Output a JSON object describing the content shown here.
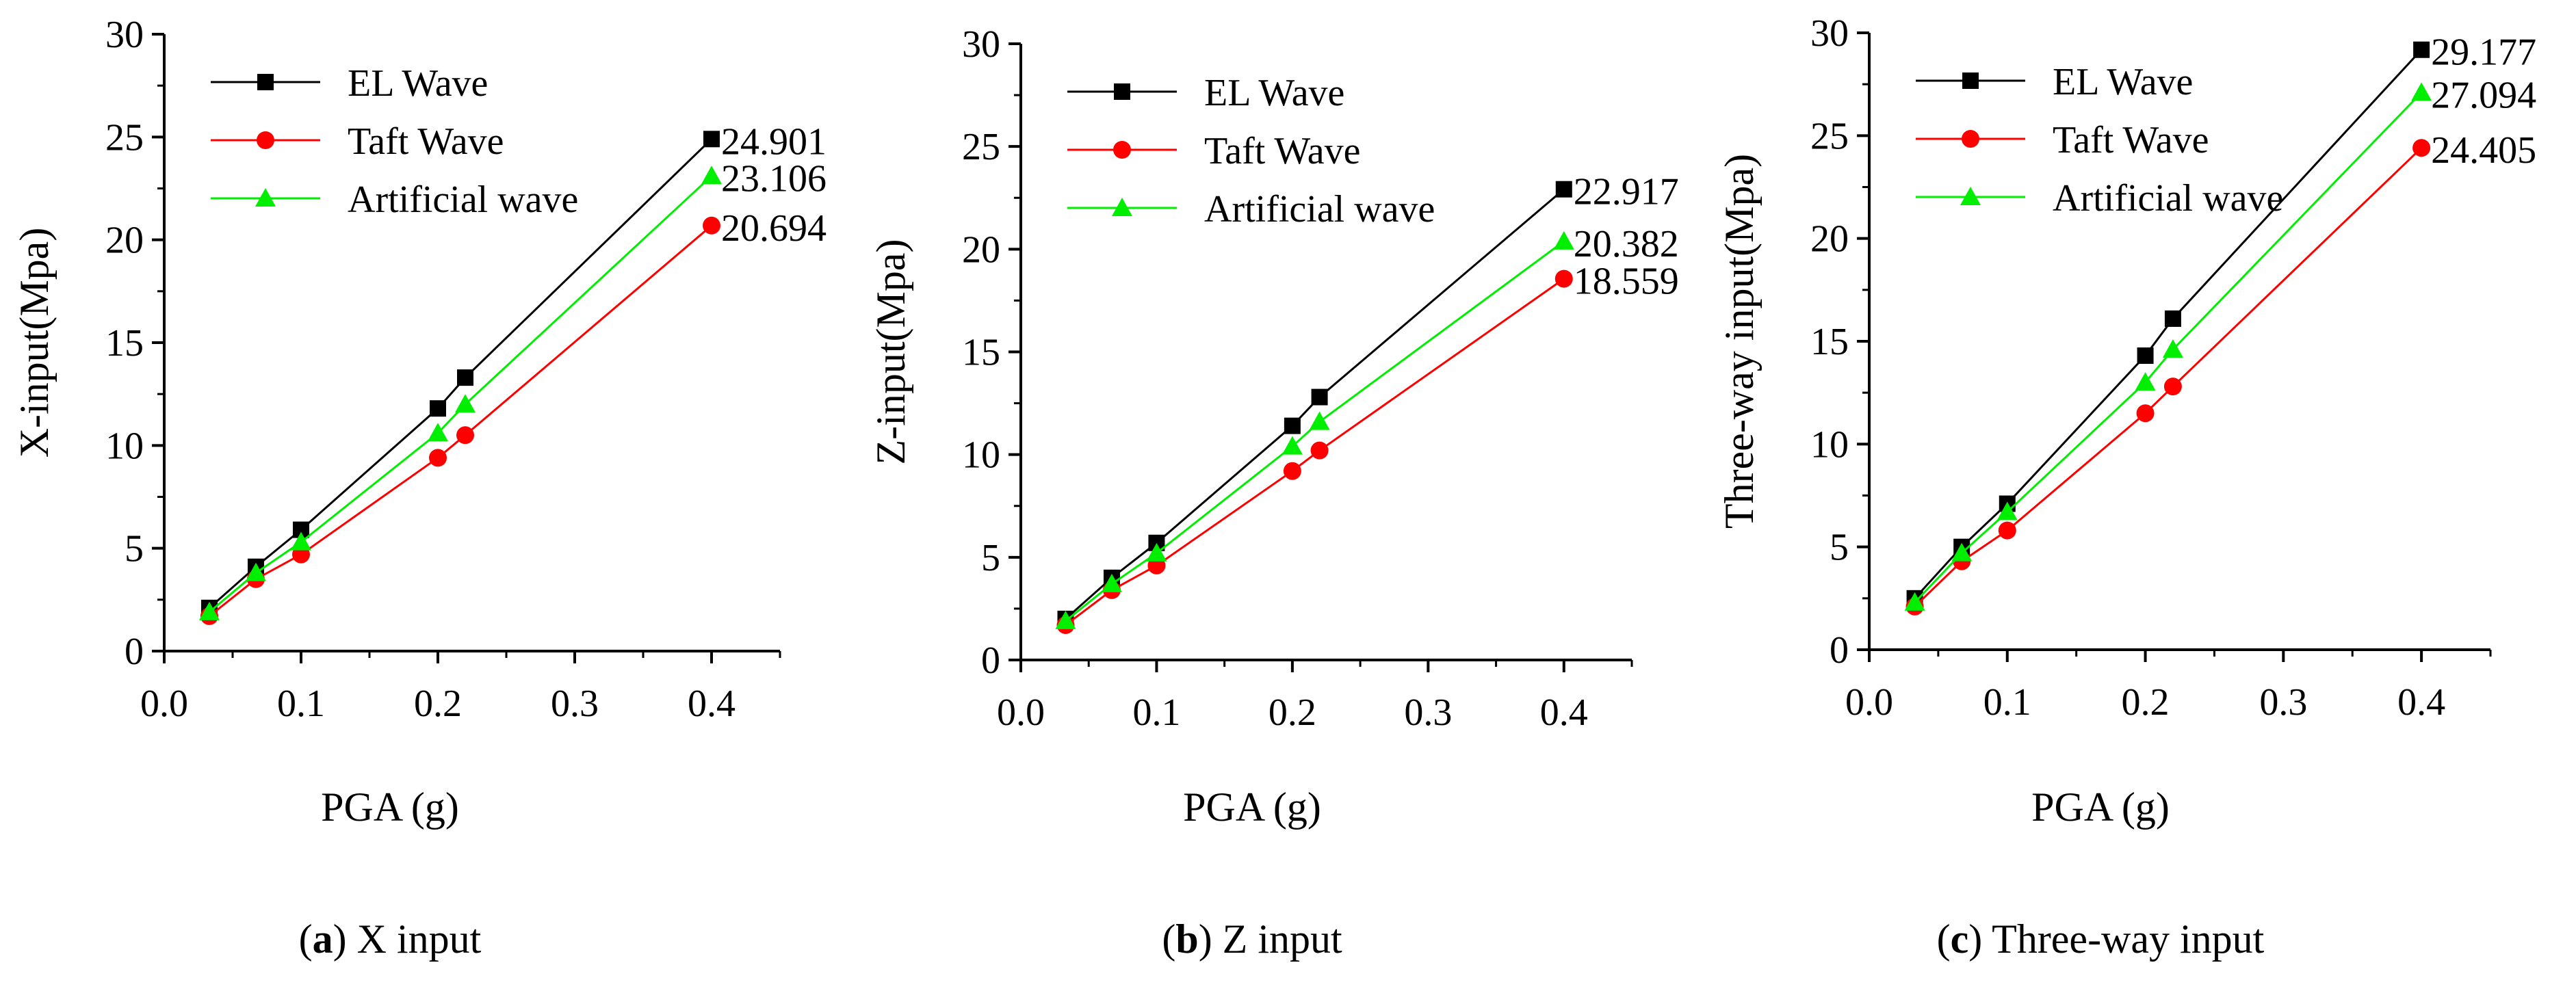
{
  "chart_data": [
    {
      "type": "line",
      "panel_label": "a",
      "caption": "X input",
      "xlabel": "PGA (g)",
      "ylabel": "X-input(Mpa)",
      "xlim": [
        0.0,
        0.45
      ],
      "ylim": [
        0,
        30
      ],
      "xticks": [
        "0.0",
        "0.1",
        "0.2",
        "0.3",
        "0.4"
      ],
      "yticks": [
        "0",
        "5",
        "10",
        "15",
        "20",
        "25",
        "30"
      ],
      "x": [
        0.033,
        0.067,
        0.1,
        0.2,
        0.22,
        0.4
      ],
      "series": [
        {
          "name": "EL Wave",
          "color": "#000000",
          "marker": "square",
          "values": [
            2.1,
            4.1,
            5.9,
            11.8,
            13.3,
            24.901
          ]
        },
        {
          "name": "Taft Wave",
          "color": "#ff0000",
          "marker": "circle",
          "values": [
            1.7,
            3.5,
            4.7,
            9.4,
            10.5,
            20.694
          ]
        },
        {
          "name": "Artificial wave",
          "color": "#00ee00",
          "marker": "triangle",
          "values": [
            1.9,
            3.8,
            5.3,
            10.6,
            12.0,
            23.106
          ]
        }
      ],
      "end_labels": [
        "24.901",
        "23.106",
        "20.694"
      ]
    },
    {
      "type": "line",
      "panel_label": "b",
      "caption": "Z input",
      "xlabel": "PGA (g)",
      "ylabel": "Z-input(Mpa)",
      "xlim": [
        0.0,
        0.45
      ],
      "ylim": [
        0,
        30
      ],
      "xticks": [
        "0.0",
        "0.1",
        "0.2",
        "0.3",
        "0.4"
      ],
      "yticks": [
        "0",
        "5",
        "10",
        "15",
        "20",
        "25",
        "30"
      ],
      "x": [
        0.033,
        0.067,
        0.1,
        0.2,
        0.22,
        0.4
      ],
      "series": [
        {
          "name": "EL Wave",
          "color": "#000000",
          "marker": "square",
          "values": [
            2.0,
            4.0,
            5.7,
            11.4,
            12.8,
            22.917
          ]
        },
        {
          "name": "Taft Wave",
          "color": "#ff0000",
          "marker": "circle",
          "values": [
            1.7,
            3.4,
            4.6,
            9.2,
            10.2,
            18.559
          ]
        },
        {
          "name": "Artificial wave",
          "color": "#00ee00",
          "marker": "triangle",
          "values": [
            1.9,
            3.7,
            5.2,
            10.4,
            11.6,
            20.382
          ]
        }
      ],
      "end_labels": [
        "22.917",
        "20.382",
        "18.559"
      ]
    },
    {
      "type": "line",
      "panel_label": "c",
      "caption": "Three-way input",
      "xlabel": "PGA (g)",
      "ylabel": "Three-way input(Mpa)",
      "xlim": [
        0.0,
        0.45
      ],
      "ylim": [
        0,
        30
      ],
      "xticks": [
        "0.0",
        "0.1",
        "0.2",
        "0.3",
        "0.4"
      ],
      "yticks": [
        "0",
        "5",
        "10",
        "15",
        "20",
        "25",
        "30"
      ],
      "x": [
        0.033,
        0.067,
        0.1,
        0.2,
        0.22,
        0.4
      ],
      "series": [
        {
          "name": "EL Wave",
          "color": "#000000",
          "marker": "square",
          "values": [
            2.5,
            5.0,
            7.1,
            14.3,
            16.1,
            29.177
          ]
        },
        {
          "name": "Taft Wave",
          "color": "#ff0000",
          "marker": "circle",
          "values": [
            2.1,
            4.3,
            5.8,
            11.5,
            12.8,
            24.405
          ]
        },
        {
          "name": "Artificial wave",
          "color": "#00ee00",
          "marker": "triangle",
          "values": [
            2.3,
            4.7,
            6.7,
            13.0,
            14.6,
            27.094
          ]
        }
      ],
      "end_labels": [
        "29.177",
        "27.094",
        "24.405"
      ]
    }
  ]
}
